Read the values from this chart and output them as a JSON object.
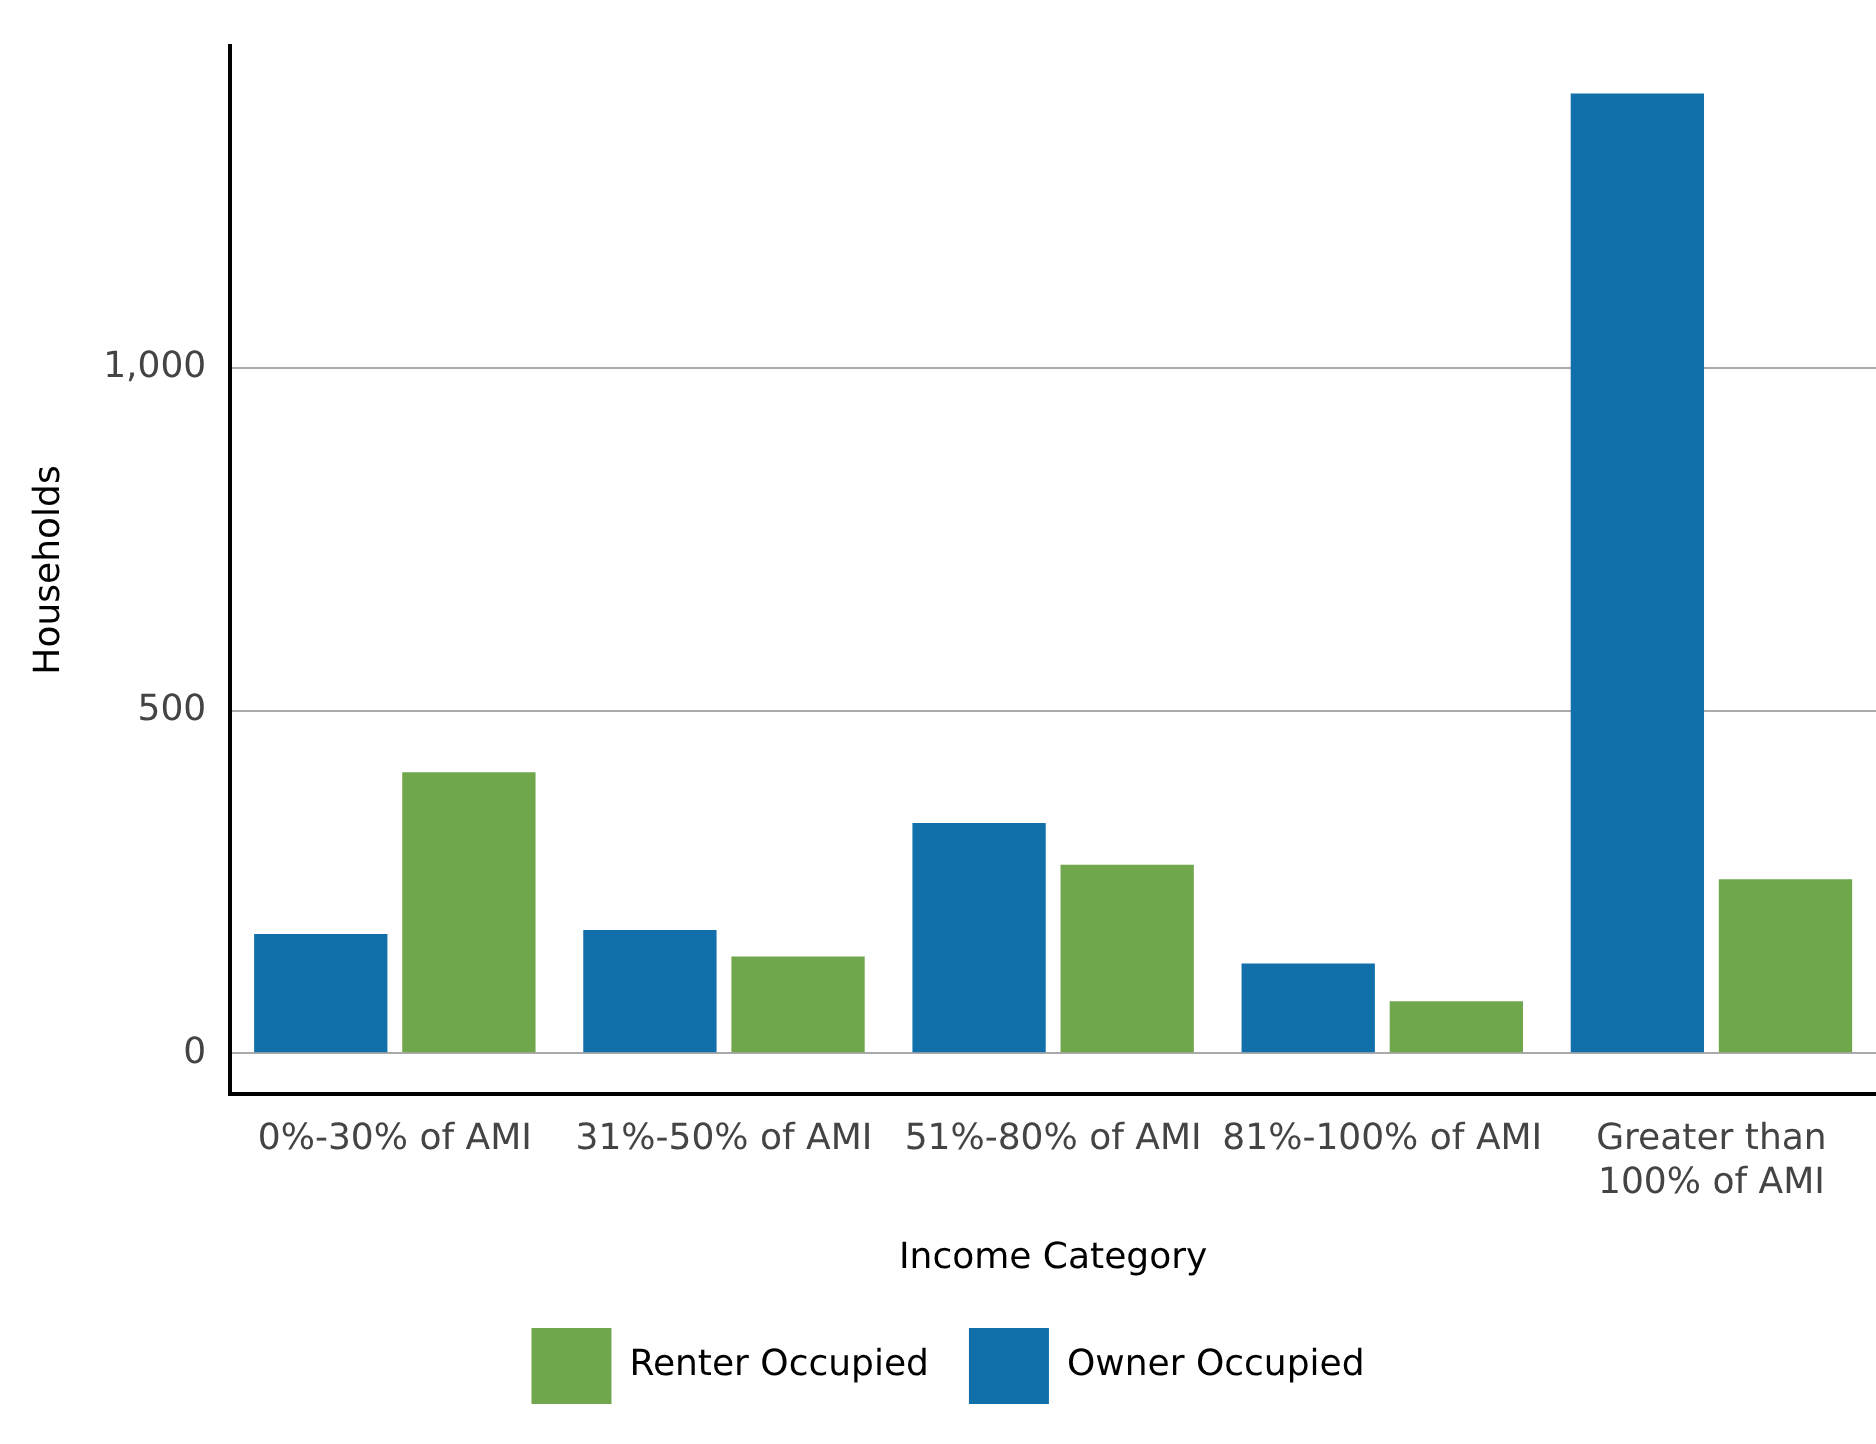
{
  "chart_data": {
    "type": "bar",
    "xlabel": "Income Category",
    "ylabel": "Households",
    "categories": [
      "0%-30% of AMI",
      "31%-50% of AMI",
      "51%-80% of AMI",
      "81%-100% of AMI",
      "Greater than 100% of AMI"
    ],
    "series": [
      {
        "name": "Owner Occupied",
        "color": "#1170aa",
        "values": [
          174,
          180,
          336,
          131,
          1400
        ]
      },
      {
        "name": "Renter Occupied",
        "color": "#70a64c",
        "values": [
          410,
          141,
          275,
          76,
          254
        ]
      }
    ],
    "ylim": [
      -60,
      1470
    ],
    "yticks": [
      {
        "value": 0,
        "label": "0"
      },
      {
        "value": 500,
        "label": "500"
      },
      {
        "value": 1000,
        "label": "1,000"
      }
    ],
    "grid": "y",
    "legend": "bottom"
  }
}
